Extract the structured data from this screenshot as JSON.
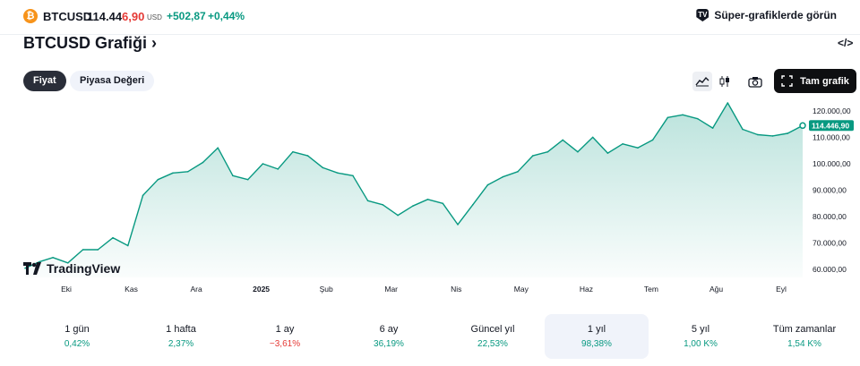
{
  "header": {
    "coin_icon": "bitcoin-icon",
    "coin_glyph": "₿",
    "symbol": "BTCUSD",
    "price_main": "114.44",
    "price_tail": "6,90",
    "currency": "USD",
    "change": "+502,87",
    "change_pct": "+0,44%",
    "super_label": "Süper-grafiklerde görün"
  },
  "title": "BTCUSD Grafiği ›",
  "embed_label": "</>",
  "tabs": [
    {
      "label": "Fiyat",
      "active": true
    },
    {
      "label": "Piyasa Değeri",
      "active": false
    }
  ],
  "toolbar": {
    "full_label": "Tam grafik",
    "icons": [
      "area-chart-icon",
      "candlestick-icon",
      "camera-icon",
      "fullscreen-icon"
    ]
  },
  "watermark": "TradingView",
  "chart_data": {
    "type": "area",
    "color": "#089981",
    "x_ticks": [
      {
        "label": "Eki",
        "bold": false
      },
      {
        "label": "Kas",
        "bold": false
      },
      {
        "label": "Ara",
        "bold": false
      },
      {
        "label": "2025",
        "bold": true
      },
      {
        "label": "Şub",
        "bold": false
      },
      {
        "label": "Mar",
        "bold": false
      },
      {
        "label": "Nis",
        "bold": false
      },
      {
        "label": "May",
        "bold": false
      },
      {
        "label": "Haz",
        "bold": false
      },
      {
        "label": "Tem",
        "bold": false
      },
      {
        "label": "Ağu",
        "bold": false
      },
      {
        "label": "Eyl",
        "bold": false
      }
    ],
    "y_ticks": [
      "120.000,00",
      "110.000,00",
      "100.000,00",
      "90.000,00",
      "80.000,00",
      "70.000,00",
      "60.000,00"
    ],
    "y_tick_values": [
      120000,
      110000,
      100000,
      90000,
      80000,
      70000,
      60000
    ],
    "ylim": [
      57000,
      123000
    ],
    "last_label": "114.446,90",
    "last_value": 114447,
    "x": [
      "2024-09-18",
      "2024-09-25",
      "2024-10-01",
      "2024-10-08",
      "2024-10-15",
      "2024-10-22",
      "2024-10-29",
      "2024-11-05",
      "2024-11-12",
      "2024-11-19",
      "2024-11-26",
      "2024-12-03",
      "2024-12-10",
      "2024-12-17",
      "2024-12-24",
      "2024-12-31",
      "2025-01-07",
      "2025-01-14",
      "2025-01-21",
      "2025-01-28",
      "2025-02-04",
      "2025-02-11",
      "2025-02-18",
      "2025-02-25",
      "2025-03-04",
      "2025-03-11",
      "2025-03-18",
      "2025-03-25",
      "2025-04-01",
      "2025-04-08",
      "2025-04-15",
      "2025-04-22",
      "2025-04-29",
      "2025-05-06",
      "2025-05-13",
      "2025-05-20",
      "2025-05-27",
      "2025-06-03",
      "2025-06-10",
      "2025-06-17",
      "2025-06-24",
      "2025-07-01",
      "2025-07-08",
      "2025-07-15",
      "2025-07-22",
      "2025-07-29",
      "2025-08-05",
      "2025-08-12",
      "2025-08-19",
      "2025-08-26",
      "2025-09-02",
      "2025-09-09",
      "2025-09-16"
    ],
    "values": [
      60500,
      63000,
      64500,
      62500,
      67500,
      67500,
      72000,
      69000,
      88000,
      94000,
      96500,
      97000,
      100500,
      106000,
      95500,
      94000,
      100000,
      98000,
      104500,
      103000,
      98500,
      96500,
      95500,
      86000,
      84500,
      80500,
      84000,
      86500,
      85000,
      77000,
      84500,
      92000,
      95000,
      97000,
      103000,
      104500,
      109000,
      104500,
      110000,
      104000,
      107500,
      106000,
      109000,
      117500,
      118500,
      117000,
      113500,
      123000,
      113000,
      111000,
      110500,
      111500,
      114447
    ]
  },
  "periods": [
    {
      "label": "1 gün",
      "value": "0,42%",
      "dir": "pos",
      "selected": false
    },
    {
      "label": "1 hafta",
      "value": "2,37%",
      "dir": "pos",
      "selected": false
    },
    {
      "label": "1 ay",
      "value": "−3,61%",
      "dir": "neg",
      "selected": false
    },
    {
      "label": "6 ay",
      "value": "36,19%",
      "dir": "pos",
      "selected": false
    },
    {
      "label": "Güncel yıl",
      "value": "22,53%",
      "dir": "pos",
      "selected": false
    },
    {
      "label": "1 yıl",
      "value": "98,38%",
      "dir": "pos",
      "selected": true
    },
    {
      "label": "5 yıl",
      "value": "1,00 K%",
      "dir": "pos",
      "selected": false
    },
    {
      "label": "Tüm zamanlar",
      "value": "1,54 K%",
      "dir": "pos",
      "selected": false
    }
  ]
}
